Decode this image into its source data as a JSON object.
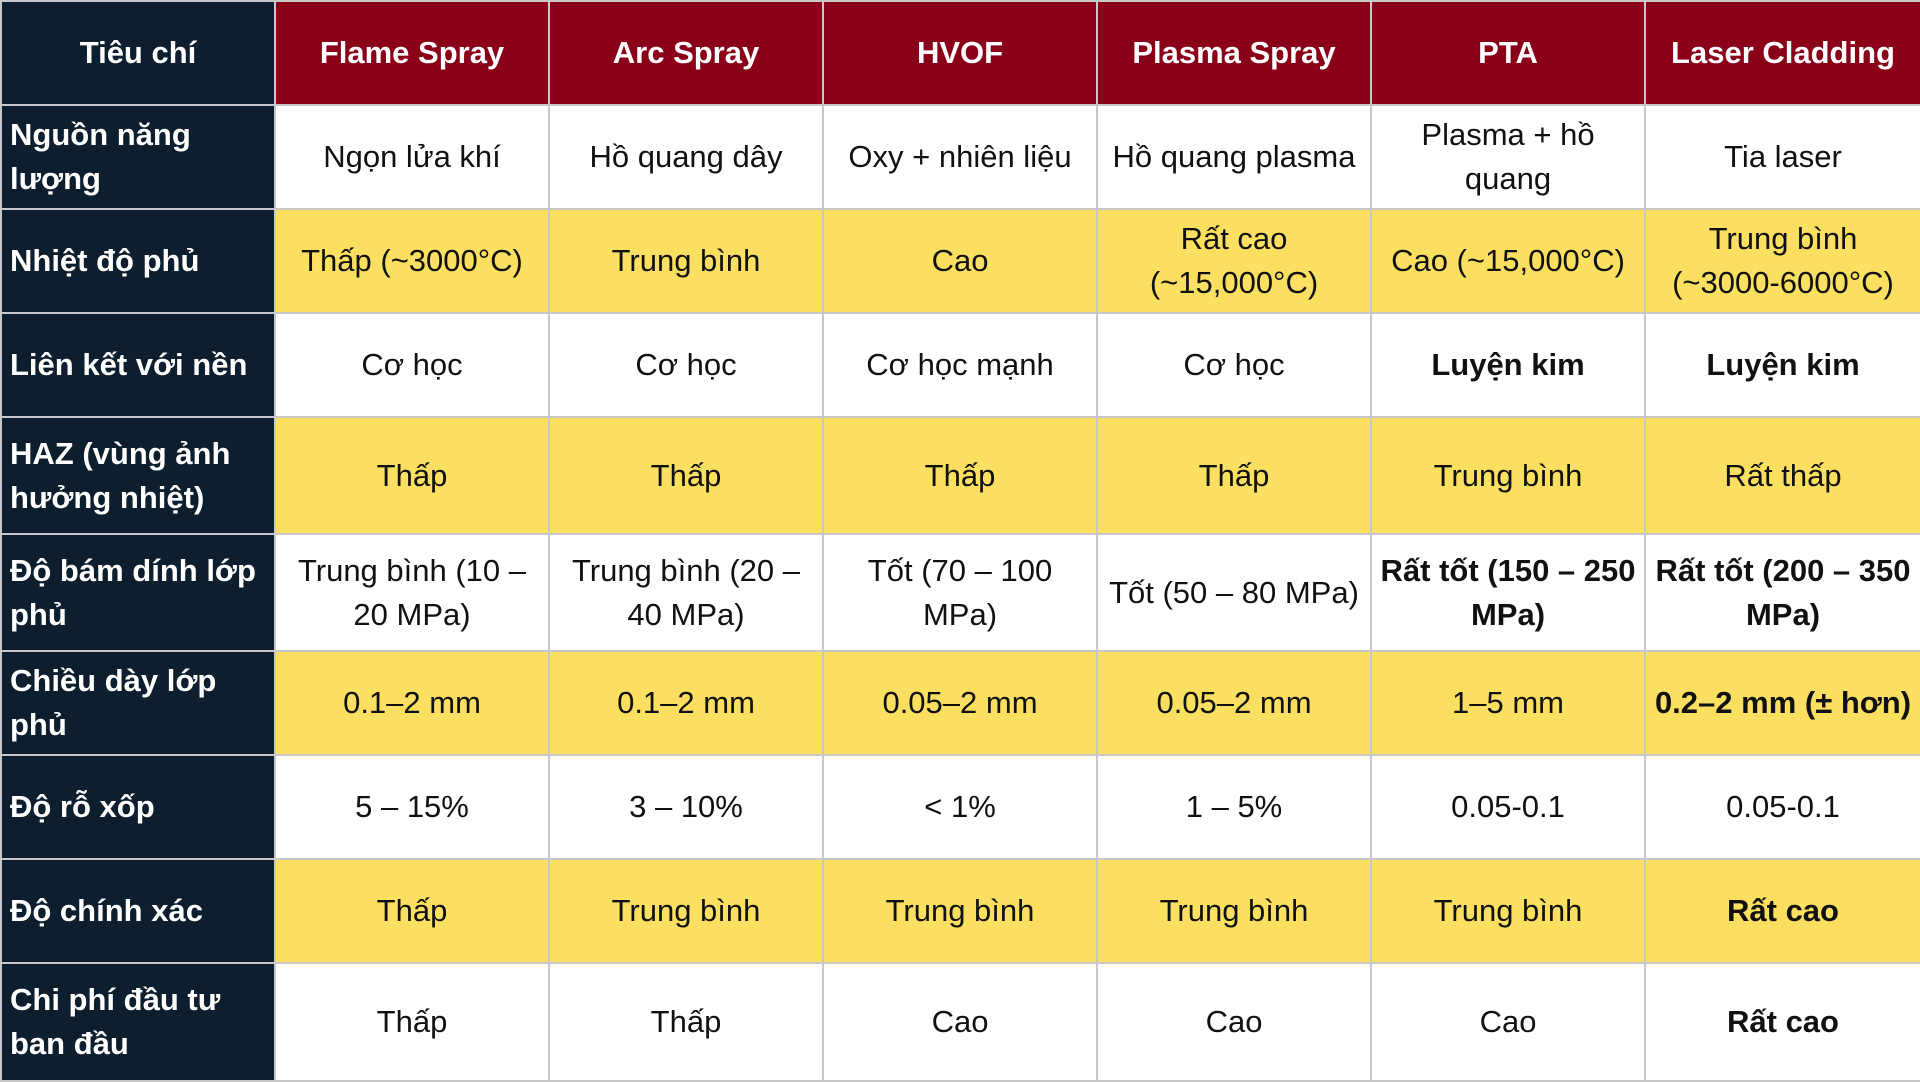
{
  "header": {
    "criteria": "Tiêu chí",
    "methods": [
      "Flame Spray",
      "Arc Spray",
      "HVOF",
      "Plasma Spray",
      "PTA",
      "Laser Cladding"
    ]
  },
  "colors": {
    "header_red": "#8a0019",
    "row_head_navy": "#0d1e2e",
    "highlight_yellow": "#fbdf60",
    "white": "#ffffff"
  },
  "rows": [
    {
      "label": "Nguồn năng lượng",
      "cells": [
        "Ngọn lửa khí",
        "Hồ quang dây",
        "Oxy + nhiên liệu",
        "Hồ quang plasma",
        "Plasma + hồ quang",
        "Tia laser"
      ]
    },
    {
      "label": "Nhiệt độ phủ",
      "cells": [
        "Thấp (~3000°C)",
        "Trung bình",
        "Cao",
        "Rất cao (~15,000°C)",
        "Cao (~15,000°C)",
        "Trung bình (~3000-6000°C)"
      ]
    },
    {
      "label": "Liên kết với nền",
      "cells": [
        "Cơ học",
        "Cơ học",
        "Cơ học mạnh",
        "Cơ học",
        "Luyện kim",
        "Luyện kim"
      ]
    },
    {
      "label": "HAZ (vùng ảnh hưởng nhiệt)",
      "cells": [
        "Thấp",
        "Thấp",
        "Thấp",
        "Thấp",
        "Trung bình",
        "Rất thấp"
      ]
    },
    {
      "label": "Độ bám dính lớp phủ",
      "cells": [
        "Trung bình (10 – 20 MPa)",
        "Trung bình (20 – 40 MPa)",
        "Tốt (70 – 100 MPa)",
        "Tốt (50 – 80 MPa)",
        "Rất tốt (150 – 250 MPa)",
        "Rất tốt (200 – 350 MPa)"
      ]
    },
    {
      "label": "Chiều dày lớp phủ",
      "cells": [
        "0.1–2 mm",
        "0.1–2 mm",
        "0.05–2 mm",
        "0.05–2 mm",
        "1–5 mm",
        "0.2–2 mm (± hơn)"
      ]
    },
    {
      "label": "Độ rỗ xốp",
      "cells": [
        "5 – 15%",
        "3 – 10%",
        "< 1%",
        "1 – 5%",
        "0.05-0.1",
        "0.05-0.1"
      ]
    },
    {
      "label": "Độ chính xác",
      "cells": [
        "Thấp",
        "Trung bình",
        "Trung bình",
        "Trung bình",
        "Trung bình",
        "Rất cao"
      ]
    },
    {
      "label": "Chi phí đầu tư ban đầu",
      "cells": [
        "Thấp",
        "Thấp",
        "Cao",
        "Cao",
        "Cao",
        "Rất cao"
      ]
    }
  ]
}
